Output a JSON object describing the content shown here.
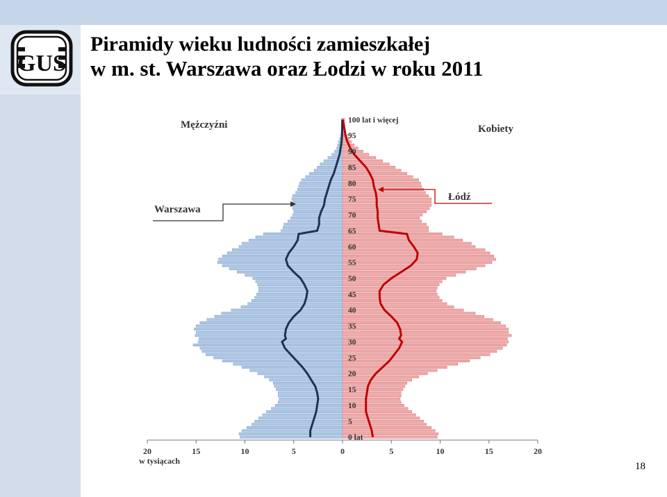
{
  "slide": {
    "title_line1": "Piramidy wieku ludności zamieszkałej",
    "title_line2": "w m. st. Warszawa oraz Łodzi w roku 2011",
    "page_number": "18",
    "logo_text": "GUS"
  },
  "chart_data": {
    "type": "bar",
    "orientation": "horizontal-pyramid",
    "x_unit_label": "w tysiącach",
    "x_ticks_left": [
      "20",
      "15",
      "10",
      "5",
      "0"
    ],
    "x_ticks_right": [
      "0",
      "5",
      "10",
      "15",
      "20"
    ],
    "xlim": [
      -20,
      20
    ],
    "y_tick_labels": [
      {
        "age": 0,
        "label": "0 lat"
      },
      {
        "age": 5,
        "label": "5"
      },
      {
        "age": 10,
        "label": "10"
      },
      {
        "age": 15,
        "label": "15"
      },
      {
        "age": 20,
        "label": "20"
      },
      {
        "age": 25,
        "label": "25"
      },
      {
        "age": 30,
        "label": "30"
      },
      {
        "age": 35,
        "label": "35"
      },
      {
        "age": 40,
        "label": "40"
      },
      {
        "age": 45,
        "label": "45"
      },
      {
        "age": 50,
        "label": "50"
      },
      {
        "age": 55,
        "label": "55"
      },
      {
        "age": 60,
        "label": "60"
      },
      {
        "age": 65,
        "label": "65"
      },
      {
        "age": 70,
        "label": "70"
      },
      {
        "age": 75,
        "label": "75"
      },
      {
        "age": 80,
        "label": "80"
      },
      {
        "age": 85,
        "label": "85"
      },
      {
        "age": 90,
        "label": "90"
      },
      {
        "age": 95,
        "label": "95"
      },
      {
        "age": 100,
        "label": "100 lat i więcej"
      }
    ],
    "legend_men": "Mężczyźni",
    "legend_women": "Kobiety",
    "annotation_warszawa": "Warszawa",
    "annotation_lodz": "Łódź",
    "men_bar_color": "#adc6e6",
    "men_bar_stroke": "#7d9fc9",
    "women_bar_color": "#f0a8a8",
    "women_bar_stroke": "#d47a7a",
    "warszawa_line_color": "#1f3350",
    "lodz_line_color": "#c00000",
    "warszawa_men": [
      {
        "age": 0,
        "v": 10.5
      },
      {
        "age": 1,
        "v": 10.6
      },
      {
        "age": 2,
        "v": 10.3
      },
      {
        "age": 3,
        "v": 9.8
      },
      {
        "age": 4,
        "v": 9.3
      },
      {
        "age": 5,
        "v": 9.0
      },
      {
        "age": 6,
        "v": 8.6
      },
      {
        "age": 7,
        "v": 8.2
      },
      {
        "age": 8,
        "v": 7.8
      },
      {
        "age": 9,
        "v": 7.3
      },
      {
        "age": 10,
        "v": 6.9
      },
      {
        "age": 11,
        "v": 6.6
      },
      {
        "age": 12,
        "v": 6.5
      },
      {
        "age": 13,
        "v": 6.6
      },
      {
        "age": 14,
        "v": 6.6
      },
      {
        "age": 15,
        "v": 6.8
      },
      {
        "age": 16,
        "v": 7.0
      },
      {
        "age": 17,
        "v": 7.1
      },
      {
        "age": 18,
        "v": 7.5
      },
      {
        "age": 19,
        "v": 8.0
      },
      {
        "age": 20,
        "v": 8.7
      },
      {
        "age": 21,
        "v": 9.5
      },
      {
        "age": 22,
        "v": 10.3
      },
      {
        "age": 23,
        "v": 11.2
      },
      {
        "age": 24,
        "v": 12.3
      },
      {
        "age": 25,
        "v": 13.2
      },
      {
        "age": 26,
        "v": 14.0
      },
      {
        "age": 27,
        "v": 14.4
      },
      {
        "age": 28,
        "v": 14.6
      },
      {
        "age": 29,
        "v": 15.3
      },
      {
        "age": 30,
        "v": 14.8
      },
      {
        "age": 31,
        "v": 14.7
      },
      {
        "age": 32,
        "v": 15.1
      },
      {
        "age": 33,
        "v": 15.0
      },
      {
        "age": 34,
        "v": 15.2
      },
      {
        "age": 35,
        "v": 15.0
      },
      {
        "age": 36,
        "v": 14.6
      },
      {
        "age": 37,
        "v": 13.9
      },
      {
        "age": 38,
        "v": 13.1
      },
      {
        "age": 39,
        "v": 12.4
      },
      {
        "age": 40,
        "v": 11.4
      },
      {
        "age": 41,
        "v": 10.4
      },
      {
        "age": 42,
        "v": 9.7
      },
      {
        "age": 43,
        "v": 9.3
      },
      {
        "age": 44,
        "v": 9.0
      },
      {
        "age": 45,
        "v": 8.8
      },
      {
        "age": 46,
        "v": 8.6
      },
      {
        "age": 47,
        "v": 8.6
      },
      {
        "age": 48,
        "v": 8.7
      },
      {
        "age": 49,
        "v": 8.9
      },
      {
        "age": 50,
        "v": 9.2
      },
      {
        "age": 51,
        "v": 10.0
      },
      {
        "age": 52,
        "v": 10.8
      },
      {
        "age": 53,
        "v": 11.6
      },
      {
        "age": 54,
        "v": 12.3
      },
      {
        "age": 55,
        "v": 12.8
      },
      {
        "age": 56,
        "v": 12.7
      },
      {
        "age": 57,
        "v": 12.3
      },
      {
        "age": 58,
        "v": 11.8
      },
      {
        "age": 59,
        "v": 11.3
      },
      {
        "age": 60,
        "v": 10.6
      },
      {
        "age": 61,
        "v": 10.3
      },
      {
        "age": 62,
        "v": 9.6
      },
      {
        "age": 63,
        "v": 8.9
      },
      {
        "age": 64,
        "v": 8.1
      },
      {
        "age": 65,
        "v": 6.3
      },
      {
        "age": 66,
        "v": 6.1
      },
      {
        "age": 67,
        "v": 6.0
      },
      {
        "age": 68,
        "v": 5.6
      },
      {
        "age": 69,
        "v": 5.3
      },
      {
        "age": 70,
        "v": 5.1
      },
      {
        "age": 71,
        "v": 5.0
      },
      {
        "age": 72,
        "v": 5.1
      },
      {
        "age": 73,
        "v": 5.2
      },
      {
        "age": 74,
        "v": 5.1
      },
      {
        "age": 75,
        "v": 5.2
      },
      {
        "age": 76,
        "v": 5.1
      },
      {
        "age": 77,
        "v": 4.8
      },
      {
        "age": 78,
        "v": 4.6
      },
      {
        "age": 79,
        "v": 4.5
      },
      {
        "age": 80,
        "v": 4.4
      },
      {
        "age": 81,
        "v": 4.2
      },
      {
        "age": 82,
        "v": 3.8
      },
      {
        "age": 83,
        "v": 3.4
      },
      {
        "age": 84,
        "v": 2.9
      },
      {
        "age": 85,
        "v": 2.6
      },
      {
        "age": 86,
        "v": 2.3
      },
      {
        "age": 87,
        "v": 1.9
      },
      {
        "age": 88,
        "v": 1.5
      },
      {
        "age": 89,
        "v": 1.1
      },
      {
        "age": 90,
        "v": 0.8
      },
      {
        "age": 91,
        "v": 0.6
      },
      {
        "age": 92,
        "v": 0.5
      },
      {
        "age": 93,
        "v": 0.4
      },
      {
        "age": 94,
        "v": 0.3
      },
      {
        "age": 95,
        "v": 0.2
      },
      {
        "age": 96,
        "v": 0.15
      },
      {
        "age": 97,
        "v": 0.1
      },
      {
        "age": 98,
        "v": 0.08
      },
      {
        "age": 99,
        "v": 0.05
      },
      {
        "age": 100,
        "v": 0.1
      }
    ],
    "warszawa_women": [
      {
        "age": 0,
        "v": 9.7
      },
      {
        "age": 1,
        "v": 9.8
      },
      {
        "age": 2,
        "v": 9.5
      },
      {
        "age": 3,
        "v": 9.1
      },
      {
        "age": 4,
        "v": 8.6
      },
      {
        "age": 5,
        "v": 8.3
      },
      {
        "age": 6,
        "v": 7.9
      },
      {
        "age": 7,
        "v": 7.5
      },
      {
        "age": 8,
        "v": 7.1
      },
      {
        "age": 9,
        "v": 6.7
      },
      {
        "age": 10,
        "v": 6.3
      },
      {
        "age": 11,
        "v": 6.0
      },
      {
        "age": 12,
        "v": 5.9
      },
      {
        "age": 13,
        "v": 6.0
      },
      {
        "age": 14,
        "v": 6.0
      },
      {
        "age": 15,
        "v": 6.2
      },
      {
        "age": 16,
        "v": 6.4
      },
      {
        "age": 17,
        "v": 6.6
      },
      {
        "age": 18,
        "v": 7.1
      },
      {
        "age": 19,
        "v": 7.8
      },
      {
        "age": 20,
        "v": 8.7
      },
      {
        "age": 21,
        "v": 9.7
      },
      {
        "age": 22,
        "v": 10.7
      },
      {
        "age": 23,
        "v": 11.8
      },
      {
        "age": 24,
        "v": 13.0
      },
      {
        "age": 25,
        "v": 14.1
      },
      {
        "age": 26,
        "v": 15.1
      },
      {
        "age": 27,
        "v": 15.8
      },
      {
        "age": 28,
        "v": 16.4
      },
      {
        "age": 29,
        "v": 16.8
      },
      {
        "age": 30,
        "v": 17.0
      },
      {
        "age": 31,
        "v": 16.9
      },
      {
        "age": 32,
        "v": 17.3
      },
      {
        "age": 33,
        "v": 17.0
      },
      {
        "age": 34,
        "v": 17.0
      },
      {
        "age": 35,
        "v": 16.7
      },
      {
        "age": 36,
        "v": 16.2
      },
      {
        "age": 37,
        "v": 15.4
      },
      {
        "age": 38,
        "v": 14.5
      },
      {
        "age": 39,
        "v": 13.6
      },
      {
        "age": 40,
        "v": 12.4
      },
      {
        "age": 41,
        "v": 11.4
      },
      {
        "age": 42,
        "v": 10.7
      },
      {
        "age": 43,
        "v": 10.2
      },
      {
        "age": 44,
        "v": 9.9
      },
      {
        "age": 45,
        "v": 9.7
      },
      {
        "age": 46,
        "v": 9.6
      },
      {
        "age": 47,
        "v": 9.7
      },
      {
        "age": 48,
        "v": 9.9
      },
      {
        "age": 49,
        "v": 10.2
      },
      {
        "age": 50,
        "v": 10.6
      },
      {
        "age": 51,
        "v": 11.6
      },
      {
        "age": 52,
        "v": 12.6
      },
      {
        "age": 53,
        "v": 13.7
      },
      {
        "age": 54,
        "v": 14.6
      },
      {
        "age": 55,
        "v": 15.3
      },
      {
        "age": 56,
        "v": 15.7
      },
      {
        "age": 57,
        "v": 15.5
      },
      {
        "age": 58,
        "v": 15.1
      },
      {
        "age": 59,
        "v": 14.6
      },
      {
        "age": 60,
        "v": 13.6
      },
      {
        "age": 61,
        "v": 13.2
      },
      {
        "age": 62,
        "v": 12.3
      },
      {
        "age": 63,
        "v": 11.4
      },
      {
        "age": 64,
        "v": 10.2
      },
      {
        "age": 65,
        "v": 8.8
      },
      {
        "age": 66,
        "v": 8.8
      },
      {
        "age": 67,
        "v": 8.6
      },
      {
        "age": 68,
        "v": 8.1
      },
      {
        "age": 69,
        "v": 7.9
      },
      {
        "age": 70,
        "v": 8.2
      },
      {
        "age": 71,
        "v": 8.6
      },
      {
        "age": 72,
        "v": 8.9
      },
      {
        "age": 73,
        "v": 9.1
      },
      {
        "age": 74,
        "v": 9.1
      },
      {
        "age": 75,
        "v": 9.1
      },
      {
        "age": 76,
        "v": 8.8
      },
      {
        "age": 77,
        "v": 8.5
      },
      {
        "age": 78,
        "v": 8.3
      },
      {
        "age": 79,
        "v": 8.1
      },
      {
        "age": 80,
        "v": 8.0
      },
      {
        "age": 81,
        "v": 7.8
      },
      {
        "age": 82,
        "v": 7.2
      },
      {
        "age": 83,
        "v": 6.6
      },
      {
        "age": 84,
        "v": 6.0
      },
      {
        "age": 85,
        "v": 5.4
      },
      {
        "age": 86,
        "v": 4.8
      },
      {
        "age": 87,
        "v": 4.1
      },
      {
        "age": 88,
        "v": 3.4
      },
      {
        "age": 89,
        "v": 2.7
      },
      {
        "age": 90,
        "v": 2.1
      },
      {
        "age": 91,
        "v": 1.6
      },
      {
        "age": 92,
        "v": 1.2
      },
      {
        "age": 93,
        "v": 0.9
      },
      {
        "age": 94,
        "v": 0.7
      },
      {
        "age": 95,
        "v": 0.5
      },
      {
        "age": 96,
        "v": 0.35
      },
      {
        "age": 97,
        "v": 0.25
      },
      {
        "age": 98,
        "v": 0.15
      },
      {
        "age": 99,
        "v": 0.1
      },
      {
        "age": 100,
        "v": 0.2
      }
    ],
    "lodz_men": [
      {
        "age": 0,
        "v": 3.3
      },
      {
        "age": 2,
        "v": 3.3
      },
      {
        "age": 4,
        "v": 3.1
      },
      {
        "age": 6,
        "v": 2.9
      },
      {
        "age": 8,
        "v": 2.7
      },
      {
        "age": 10,
        "v": 2.6
      },
      {
        "age": 12,
        "v": 2.5
      },
      {
        "age": 14,
        "v": 2.6
      },
      {
        "age": 16,
        "v": 2.8
      },
      {
        "age": 18,
        "v": 3.2
      },
      {
        "age": 20,
        "v": 3.6
      },
      {
        "age": 22,
        "v": 4.1
      },
      {
        "age": 24,
        "v": 4.7
      },
      {
        "age": 26,
        "v": 5.3
      },
      {
        "age": 28,
        "v": 5.9
      },
      {
        "age": 30,
        "v": 6.2
      },
      {
        "age": 31,
        "v": 5.8
      },
      {
        "age": 32,
        "v": 5.9
      },
      {
        "age": 34,
        "v": 5.8
      },
      {
        "age": 36,
        "v": 5.5
      },
      {
        "age": 38,
        "v": 5.0
      },
      {
        "age": 40,
        "v": 4.3
      },
      {
        "age": 42,
        "v": 3.9
      },
      {
        "age": 44,
        "v": 3.7
      },
      {
        "age": 46,
        "v": 3.6
      },
      {
        "age": 48,
        "v": 3.9
      },
      {
        "age": 50,
        "v": 4.3
      },
      {
        "age": 52,
        "v": 5.0
      },
      {
        "age": 54,
        "v": 5.6
      },
      {
        "age": 56,
        "v": 5.8
      },
      {
        "age": 58,
        "v": 5.5
      },
      {
        "age": 60,
        "v": 5.0
      },
      {
        "age": 62,
        "v": 4.6
      },
      {
        "age": 64,
        "v": 4.5
      },
      {
        "age": 65,
        "v": 2.6
      },
      {
        "age": 67,
        "v": 2.4
      },
      {
        "age": 69,
        "v": 2.4
      },
      {
        "age": 71,
        "v": 2.2
      },
      {
        "age": 73,
        "v": 1.9
      },
      {
        "age": 75,
        "v": 1.8
      },
      {
        "age": 77,
        "v": 1.6
      },
      {
        "age": 79,
        "v": 1.4
      },
      {
        "age": 81,
        "v": 1.2
      },
      {
        "age": 83,
        "v": 0.9
      },
      {
        "age": 85,
        "v": 0.7
      },
      {
        "age": 87,
        "v": 0.5
      },
      {
        "age": 89,
        "v": 0.3
      },
      {
        "age": 91,
        "v": 0.2
      },
      {
        "age": 93,
        "v": 0.1
      },
      {
        "age": 95,
        "v": 0.05
      },
      {
        "age": 100,
        "v": 0.02
      }
    ],
    "lodz_women": [
      {
        "age": 0,
        "v": 3.1
      },
      {
        "age": 2,
        "v": 3.0
      },
      {
        "age": 4,
        "v": 2.8
      },
      {
        "age": 6,
        "v": 2.6
      },
      {
        "age": 8,
        "v": 2.4
      },
      {
        "age": 10,
        "v": 2.4
      },
      {
        "age": 12,
        "v": 2.4
      },
      {
        "age": 14,
        "v": 2.5
      },
      {
        "age": 16,
        "v": 2.6
      },
      {
        "age": 18,
        "v": 2.9
      },
      {
        "age": 20,
        "v": 3.4
      },
      {
        "age": 22,
        "v": 4.1
      },
      {
        "age": 24,
        "v": 4.8
      },
      {
        "age": 26,
        "v": 5.3
      },
      {
        "age": 28,
        "v": 5.8
      },
      {
        "age": 30,
        "v": 6.1
      },
      {
        "age": 31,
        "v": 5.8
      },
      {
        "age": 32,
        "v": 6.0
      },
      {
        "age": 34,
        "v": 5.9
      },
      {
        "age": 36,
        "v": 5.6
      },
      {
        "age": 38,
        "v": 5.0
      },
      {
        "age": 40,
        "v": 4.3
      },
      {
        "age": 42,
        "v": 3.9
      },
      {
        "age": 44,
        "v": 3.8
      },
      {
        "age": 46,
        "v": 3.8
      },
      {
        "age": 48,
        "v": 4.2
      },
      {
        "age": 50,
        "v": 5.0
      },
      {
        "age": 52,
        "v": 6.0
      },
      {
        "age": 54,
        "v": 7.0
      },
      {
        "age": 56,
        "v": 7.6
      },
      {
        "age": 58,
        "v": 7.7
      },
      {
        "age": 60,
        "v": 7.3
      },
      {
        "age": 62,
        "v": 6.8
      },
      {
        "age": 64,
        "v": 6.6
      },
      {
        "age": 65,
        "v": 3.8
      },
      {
        "age": 67,
        "v": 3.7
      },
      {
        "age": 69,
        "v": 3.6
      },
      {
        "age": 71,
        "v": 3.6
      },
      {
        "age": 73,
        "v": 3.5
      },
      {
        "age": 75,
        "v": 3.5
      },
      {
        "age": 77,
        "v": 3.4
      },
      {
        "age": 79,
        "v": 3.2
      },
      {
        "age": 81,
        "v": 3.1
      },
      {
        "age": 83,
        "v": 2.8
      },
      {
        "age": 85,
        "v": 2.4
      },
      {
        "age": 87,
        "v": 1.8
      },
      {
        "age": 89,
        "v": 1.2
      },
      {
        "age": 91,
        "v": 0.8
      },
      {
        "age": 93,
        "v": 0.5
      },
      {
        "age": 95,
        "v": 0.3
      },
      {
        "age": 100,
        "v": 0.05
      }
    ]
  }
}
